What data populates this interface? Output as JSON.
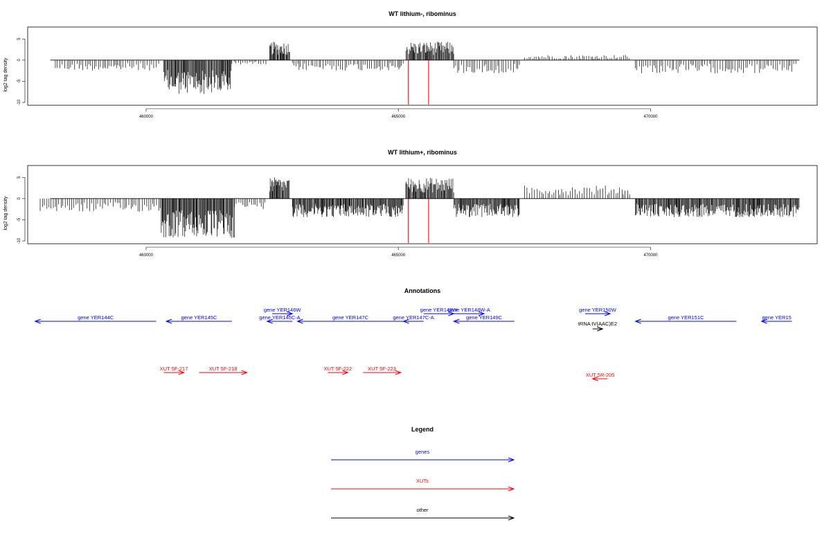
{
  "chart_data": [
    {
      "type": "bar",
      "title": "WT lithium-, ribominus",
      "xlabel": "",
      "ylabel": "log2 tag density",
      "xlim": [
        457900,
        473000
      ],
      "ylim": [
        -10,
        7
      ],
      "x_ticks": [
        460000,
        465000,
        470000
      ],
      "x_tick_labels": [
        "460000",
        "465000",
        "470000"
      ],
      "y_ticks": [
        5,
        0,
        -5,
        -10
      ],
      "y_tick_labels": [
        "5",
        "0",
        "-5",
        "-10"
      ],
      "marker_lines_x": [
        465200,
        465600
      ],
      "marker_color": "#ff0000",
      "segments": [
        {
          "from": 458200,
          "to": 460300,
          "value": -2.0
        },
        {
          "from": 460350,
          "to": 461700,
          "value": -6.5
        },
        {
          "from": 461700,
          "to": 462400,
          "value": -0.8
        },
        {
          "from": 462450,
          "to": 462850,
          "value": 3.5
        },
        {
          "from": 462900,
          "to": 465100,
          "value": -2.0
        },
        {
          "from": 465150,
          "to": 466100,
          "value": 3.5
        },
        {
          "from": 466100,
          "to": 467400,
          "value": -2.5
        },
        {
          "from": 467500,
          "to": 469600,
          "value": 1.0
        },
        {
          "from": 469700,
          "to": 472900,
          "value": -2.5
        }
      ]
    },
    {
      "type": "bar",
      "title": "WT lithium+, ribominus",
      "xlabel": "",
      "ylabel": "log2 tag density",
      "xlim": [
        457900,
        473000
      ],
      "ylim": [
        -10,
        7
      ],
      "x_ticks": [
        460000,
        465000,
        470000
      ],
      "x_tick_labels": [
        "460000",
        "465000",
        "470000"
      ],
      "y_ticks": [
        5,
        0,
        -5,
        -10
      ],
      "y_tick_labels": [
        "5",
        "0",
        "-5",
        "-10"
      ],
      "marker_lines_x": [
        465200,
        465600
      ],
      "marker_color": "#ff0000",
      "segments": [
        {
          "from": 457900,
          "to": 460300,
          "value": -2.5
        },
        {
          "from": 460300,
          "to": 461750,
          "value": -7.5
        },
        {
          "from": 461750,
          "to": 462400,
          "value": -2.0
        },
        {
          "from": 462450,
          "to": 462850,
          "value": 4.0
        },
        {
          "from": 462900,
          "to": 465100,
          "value": -3.5
        },
        {
          "from": 465150,
          "to": 466100,
          "value": 4.0
        },
        {
          "from": 466100,
          "to": 467400,
          "value": -3.5
        },
        {
          "from": 467500,
          "to": 469600,
          "value": 2.5
        },
        {
          "from": 469700,
          "to": 472950,
          "value": -3.5
        }
      ]
    }
  ],
  "annotations": {
    "title": "Annotations",
    "xlim": [
      457900,
      473000
    ],
    "genes": [
      {
        "label": "gene YER144C",
        "start": 460200,
        "end": 457800,
        "row": 0
      },
      {
        "label": "gene YER145C",
        "start": 461700,
        "end": 460400,
        "row": 0
      },
      {
        "label": "gene YER146W",
        "start": 462500,
        "end": 462900,
        "row": 1
      },
      {
        "label": "gene YER145C-A",
        "start": 462900,
        "end": 462400,
        "row": 0
      },
      {
        "label": "gene YER147C",
        "start": 465100,
        "end": 463000,
        "row": 0
      },
      {
        "label": "gene YER147C-A",
        "start": 465500,
        "end": 465100,
        "row": 0
      },
      {
        "label": "gene YER148W",
        "start": 465500,
        "end": 466100,
        "row": 1
      },
      {
        "label": "gene YER148W-A",
        "start": 466100,
        "end": 466700,
        "row": 1
      },
      {
        "label": "gene YER149C",
        "start": 467300,
        "end": 466100,
        "row": 0
      },
      {
        "label": "gene YER150W",
        "start": 468700,
        "end": 469200,
        "row": 1
      },
      {
        "label": "gene YER151C",
        "start": 471700,
        "end": 469700,
        "row": 0
      },
      {
        "label": "gene YER15",
        "start": 472800,
        "end": 472200,
        "row": 0
      }
    ],
    "other": [
      {
        "label": "tRNA tV(AAC)E2",
        "start": 468850,
        "end": 469050,
        "row": 2
      }
    ],
    "xuts": [
      {
        "label": "XUT 5F-217",
        "start": 460350,
        "end": 460750,
        "row": 0
      },
      {
        "label": "XUT 5F-218",
        "start": 461050,
        "end": 462000,
        "row": 0
      },
      {
        "label": "XUT 5F-222",
        "start": 463600,
        "end": 464000,
        "row": 0
      },
      {
        "label": "XUT 5F-223",
        "start": 464300,
        "end": 465050,
        "row": 0
      },
      {
        "label": "XUT 5R-205",
        "start": 469150,
        "end": 468850,
        "row": 1
      }
    ]
  },
  "legend": {
    "title": "Legend",
    "items": [
      {
        "label": "genes",
        "color": "#0000ff"
      },
      {
        "label": "XUTs",
        "color": "#ff0000"
      },
      {
        "label": "other",
        "color": "#000000"
      }
    ]
  },
  "colors": {
    "gene": "#0000ff",
    "xut": "#ff0000",
    "other": "#000000",
    "bar": "#000000"
  }
}
